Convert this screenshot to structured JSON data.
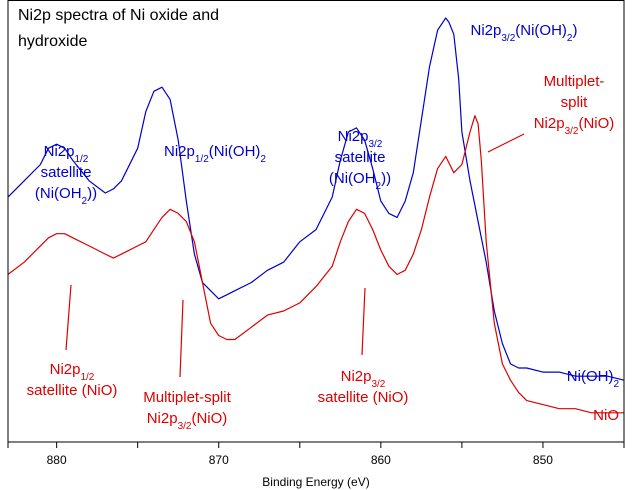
{
  "chart_data": {
    "type": "line",
    "title_lines": [
      "Ni2p spectra of Ni oxide and",
      "hydroxide"
    ],
    "xlabel": "Binding Energy (eV)",
    "xlim": [
      883,
      845
    ],
    "x_reversed": true,
    "ylim": [
      0,
      1
    ],
    "y_ticks_shown": false,
    "x_ticks": [
      880,
      870,
      860,
      850
    ],
    "x_minor_ticks": [
      883,
      875,
      865,
      855,
      845
    ],
    "colors": {
      "nioh2": "#0000cc",
      "nio": "#dd0000",
      "axis": "#000000"
    },
    "series": [
      {
        "name": "Ni(OH)2",
        "color_key": "nioh2",
        "x": [
          883,
          882,
          881,
          880.5,
          880,
          879.5,
          879,
          878,
          877,
          876.5,
          876,
          875,
          874.5,
          874,
          873.5,
          873,
          872.5,
          872,
          871.5,
          871,
          870.5,
          870,
          869.5,
          869,
          868,
          867,
          866,
          865,
          864,
          863,
          862.5,
          862,
          861.5,
          861,
          860.5,
          860,
          859.5,
          859,
          858.5,
          858,
          857.5,
          857,
          856.5,
          856,
          855.8,
          855.5,
          855.2,
          855,
          854.5,
          854,
          853.5,
          853,
          852.5,
          852,
          851.5,
          851,
          850,
          849,
          848,
          847,
          846,
          845
        ],
        "y": [
          0.56,
          0.6,
          0.64,
          0.68,
          0.69,
          0.68,
          0.65,
          0.6,
          0.57,
          0.58,
          0.6,
          0.68,
          0.77,
          0.82,
          0.83,
          0.8,
          0.7,
          0.55,
          0.42,
          0.35,
          0.33,
          0.31,
          0.32,
          0.33,
          0.35,
          0.38,
          0.4,
          0.45,
          0.48,
          0.56,
          0.65,
          0.72,
          0.73,
          0.7,
          0.63,
          0.55,
          0.52,
          0.51,
          0.55,
          0.62,
          0.75,
          0.88,
          0.97,
          1.0,
          0.99,
          0.96,
          0.85,
          0.72,
          0.6,
          0.5,
          0.4,
          0.28,
          0.2,
          0.15,
          0.14,
          0.14,
          0.13,
          0.13,
          0.12,
          0.12,
          0.12,
          0.11
        ]
      },
      {
        "name": "NiO",
        "color_key": "nio",
        "x": [
          883,
          882,
          881,
          880.5,
          880,
          879.5,
          879,
          878,
          877,
          876.5,
          876,
          875,
          874.5,
          874,
          873.5,
          873,
          872.5,
          872,
          871.5,
          871,
          870.5,
          870,
          869.5,
          869,
          868,
          867,
          866,
          865,
          864,
          863,
          862.5,
          862,
          861.5,
          861,
          860.5,
          860,
          859.5,
          859,
          858.5,
          858,
          857.5,
          857,
          856.5,
          856,
          855.5,
          855,
          854.5,
          854.2,
          854,
          853.8,
          853.5,
          853,
          852.5,
          852,
          851.5,
          851,
          850,
          849,
          848,
          847,
          846,
          845
        ],
        "y": [
          0.37,
          0.4,
          0.44,
          0.46,
          0.47,
          0.47,
          0.46,
          0.44,
          0.42,
          0.41,
          0.42,
          0.44,
          0.45,
          0.48,
          0.51,
          0.53,
          0.52,
          0.5,
          0.45,
          0.35,
          0.25,
          0.22,
          0.21,
          0.21,
          0.24,
          0.27,
          0.28,
          0.3,
          0.34,
          0.39,
          0.45,
          0.5,
          0.53,
          0.52,
          0.48,
          0.43,
          0.39,
          0.37,
          0.38,
          0.42,
          0.48,
          0.56,
          0.63,
          0.66,
          0.62,
          0.64,
          0.72,
          0.76,
          0.74,
          0.65,
          0.45,
          0.25,
          0.15,
          0.11,
          0.08,
          0.06,
          0.05,
          0.04,
          0.04,
          0.03,
          0.03,
          0.03
        ]
      }
    ],
    "annotations": {
      "sat12_oh": {
        "lines": [
          "Ni2p_{1/2}",
          "satellite",
          "(Ni(OH_{2}))"
        ],
        "color_key": "nioh2"
      },
      "main12_oh": {
        "lines": [
          "Ni2p_{1/2}(Ni(OH)_{2}"
        ],
        "color_key": "nioh2"
      },
      "sat32_oh": {
        "lines": [
          "Ni2p_{3/2}",
          "satellite",
          "(Ni(OH_{2}))"
        ],
        "color_key": "nioh2"
      },
      "main32_oh": {
        "lines": [
          "Ni2p_{3/2}(Ni(OH)_{2})"
        ],
        "color_key": "nioh2"
      },
      "split32_nio": {
        "lines": [
          "Multiplet-",
          "split",
          "Ni2p_{3/2}(NiO)"
        ],
        "color_key": "nio"
      },
      "sat12_nio": {
        "lines": [
          "Ni2p_{1/2}",
          "satellite (NiO)"
        ],
        "color_key": "nio"
      },
      "split32_nio_low": {
        "lines": [
          "Multiplet-split",
          "Ni2p_{3/2}(NiO)"
        ],
        "color_key": "nio"
      },
      "sat32_nio": {
        "lines": [
          "Ni2p_{3/2}",
          "satellite (NiO)"
        ],
        "color_key": "nio"
      },
      "legend_oh": {
        "lines": [
          "Ni(OH)_{2}"
        ],
        "color_key": "nioh2"
      },
      "legend_nio": {
        "lines": [
          "NiO"
        ],
        "color_key": "nio"
      }
    }
  }
}
